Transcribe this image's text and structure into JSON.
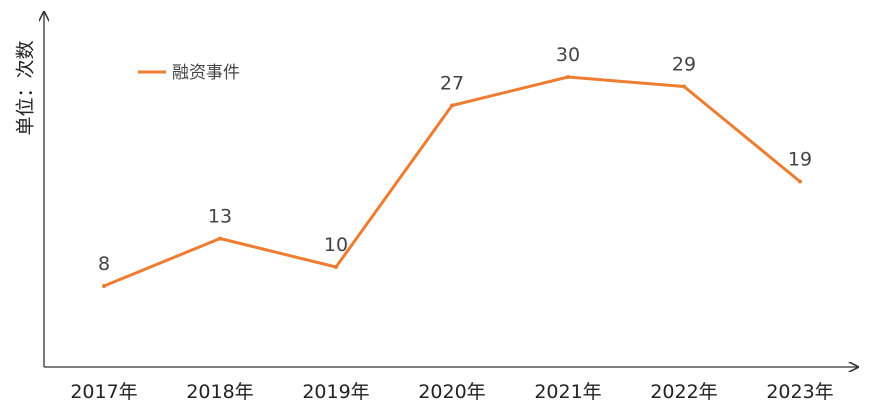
{
  "chart_data": {
    "type": "line",
    "ylabel": "单位：次数",
    "categories": [
      "2017年",
      "2018年",
      "2019年",
      "2020年",
      "2021年",
      "2022年",
      "2023年"
    ],
    "series": [
      {
        "name": "融资事件",
        "values": [
          8,
          13,
          10,
          27,
          30,
          29,
          19
        ],
        "color": "#ED7D31"
      }
    ],
    "data_labels": [
      "8",
      "13",
      "10",
      "27",
      "30",
      "29",
      "19"
    ],
    "legend_position": "top-left",
    "grid": false
  }
}
